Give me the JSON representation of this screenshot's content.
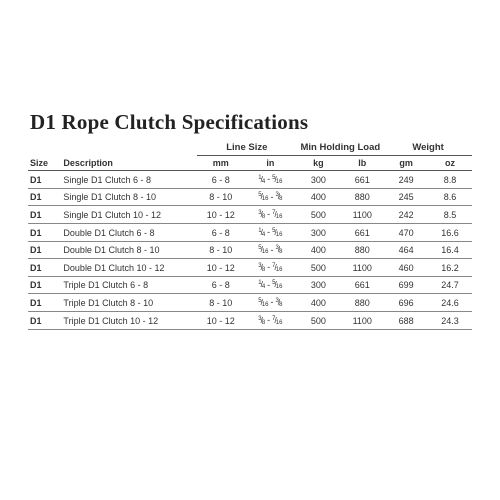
{
  "title": "D1 Rope Clutch Specifications",
  "table": {
    "type": "table",
    "background_color": "#ffffff",
    "border_color": "#888888",
    "header_border_color": "#555555",
    "font_family": "Arial",
    "body_fontsize_pt": 7,
    "title_fontsize_pt": 16,
    "title_font_family": "Times New Roman",
    "groups": {
      "line_size": "Line Size",
      "min_holding": "Min Holding Load",
      "weight": "Weight"
    },
    "columns": {
      "size": "Size",
      "description": "Description",
      "mm": "mm",
      "in": "in",
      "kg": "kg",
      "lb": "lb",
      "gm": "gm",
      "oz": "oz"
    },
    "column_align": {
      "size": "left",
      "description": "left",
      "mm": "center",
      "in": "center",
      "kg": "center",
      "lb": "center",
      "gm": "center",
      "oz": "center"
    },
    "rows": [
      {
        "size": "D1",
        "description": "Single D1 Clutch 6 - 8",
        "mm": "6 - 8",
        "in_a": "1/4",
        "in_b": "5/16",
        "kg": "300",
        "lb": "661",
        "gm": "249",
        "oz": "8.8"
      },
      {
        "size": "D1",
        "description": "Single D1 Clutch 8 - 10",
        "mm": "8 - 10",
        "in_a": "5/16",
        "in_b": "3/8",
        "kg": "400",
        "lb": "880",
        "gm": "245",
        "oz": "8.6"
      },
      {
        "size": "D1",
        "description": "Single D1 Clutch 10 - 12",
        "mm": "10 - 12",
        "in_a": "3/8",
        "in_b": "7/16",
        "kg": "500",
        "lb": "1100",
        "gm": "242",
        "oz": "8.5"
      },
      {
        "size": "D1",
        "description": "Double D1 Clutch 6 - 8",
        "mm": "6 - 8",
        "in_a": "1/4",
        "in_b": "5/16",
        "kg": "300",
        "lb": "661",
        "gm": "470",
        "oz": "16.6"
      },
      {
        "size": "D1",
        "description": "Double D1 Clutch 8 - 10",
        "mm": "8 - 10",
        "in_a": "5/16",
        "in_b": "3/8",
        "kg": "400",
        "lb": "880",
        "gm": "464",
        "oz": "16.4"
      },
      {
        "size": "D1",
        "description": "Double D1 Clutch 10 - 12",
        "mm": "10 - 12",
        "in_a": "3/8",
        "in_b": "7/16",
        "kg": "500",
        "lb": "1100",
        "gm": "460",
        "oz": "16.2"
      },
      {
        "size": "D1",
        "description": "Triple D1 Clutch 6 - 8",
        "mm": "6 - 8",
        "in_a": "1/4",
        "in_b": "5/16",
        "kg": "300",
        "lb": "661",
        "gm": "699",
        "oz": "24.7"
      },
      {
        "size": "D1",
        "description": "Triple D1 Clutch 8 - 10",
        "mm": "8 - 10",
        "in_a": "5/16",
        "in_b": "3/8",
        "kg": "400",
        "lb": "880",
        "gm": "696",
        "oz": "24.6"
      },
      {
        "size": "D1",
        "description": "Triple D1 Clutch 10 - 12",
        "mm": "10 - 12",
        "in_a": "3/8",
        "in_b": "7/16",
        "kg": "500",
        "lb": "1100",
        "gm": "688",
        "oz": "24.3"
      }
    ]
  }
}
